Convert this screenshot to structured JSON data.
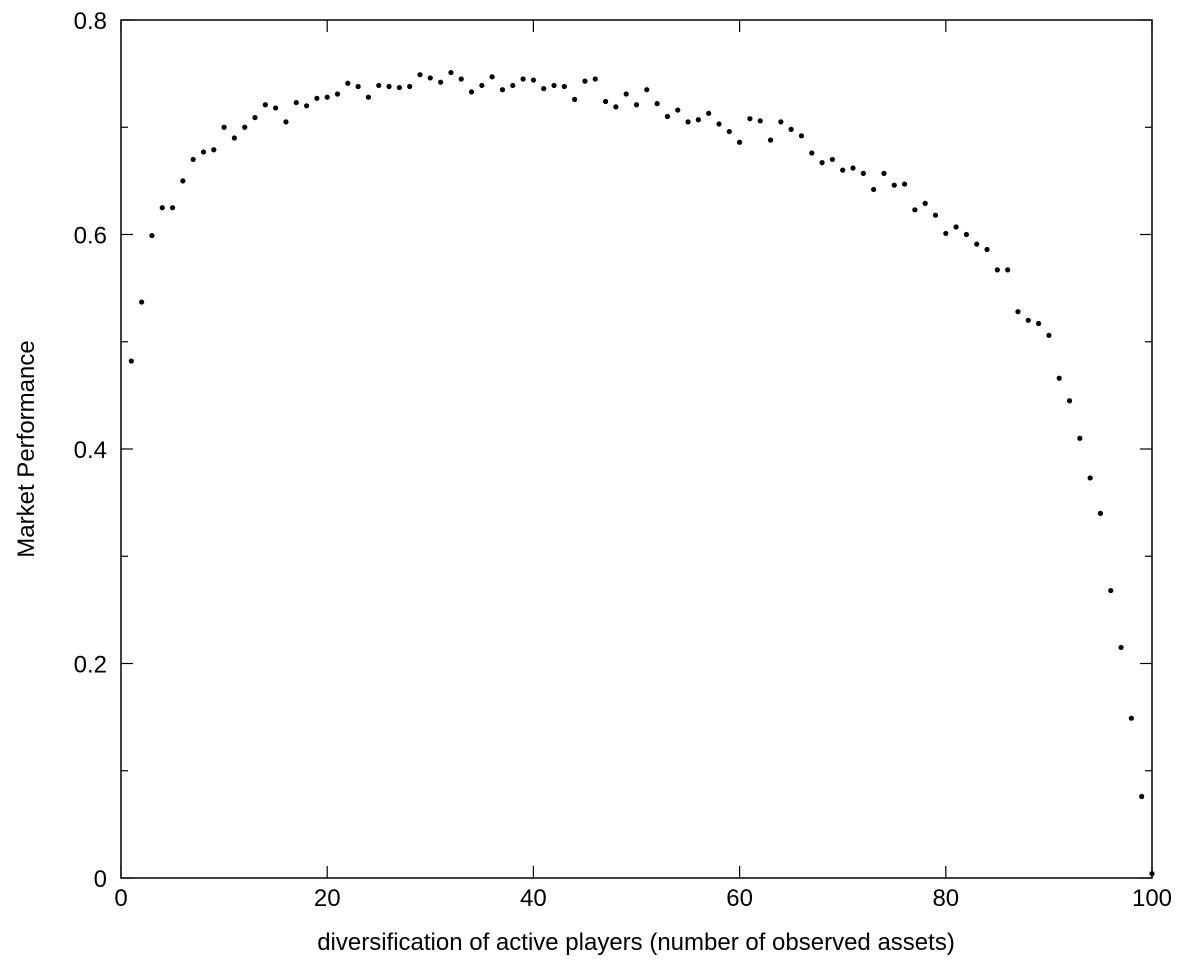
{
  "chart_data": {
    "type": "scatter",
    "title": "",
    "xlabel": "diversification of active players (number of observed assets)",
    "ylabel": "Market Performance",
    "xlim": [
      0,
      100
    ],
    "ylim": [
      0,
      0.8
    ],
    "x_ticks": [
      0,
      20,
      40,
      60,
      80,
      100
    ],
    "x_tick_labels": [
      "0",
      "20",
      "40",
      "60",
      "80",
      "100"
    ],
    "y_ticks": [
      0,
      0.2,
      0.4,
      0.6,
      0.8
    ],
    "y_tick_labels": [
      "0",
      "0.2",
      "0.4",
      "0.6",
      "0.8"
    ],
    "y_minor_ticks": [
      0.1,
      0.3,
      0.5,
      0.7
    ],
    "grid": false,
    "marker_color": "#000000",
    "series": [
      {
        "x": [
          1,
          2,
          3,
          4,
          5,
          6,
          7,
          8,
          9,
          10,
          11,
          12,
          13,
          14,
          15,
          16,
          17,
          18,
          19,
          20,
          21,
          22,
          23,
          24,
          25,
          26,
          27,
          28,
          29,
          30,
          31,
          32,
          33,
          34,
          35,
          36,
          37,
          38,
          39,
          40,
          41,
          42,
          43,
          44,
          45,
          46,
          47,
          48,
          49,
          50,
          51,
          52,
          53,
          54,
          55,
          56,
          57,
          58,
          59,
          60,
          61,
          62,
          63,
          64,
          65,
          66,
          67,
          68,
          69,
          70,
          71,
          72,
          73,
          74,
          75,
          76,
          77,
          78,
          79,
          80,
          81,
          82,
          83,
          84,
          85,
          86,
          87,
          88,
          89,
          90,
          91,
          92,
          93,
          94,
          95,
          96,
          97,
          98,
          99,
          100
        ],
        "y": [
          0.482,
          0.537,
          0.599,
          0.625,
          0.625,
          0.65,
          0.67,
          0.677,
          0.679,
          0.7,
          0.69,
          0.7,
          0.709,
          0.721,
          0.718,
          0.705,
          0.723,
          0.72,
          0.727,
          0.728,
          0.731,
          0.741,
          0.738,
          0.728,
          0.739,
          0.738,
          0.737,
          0.738,
          0.749,
          0.746,
          0.742,
          0.751,
          0.745,
          0.733,
          0.739,
          0.747,
          0.735,
          0.739,
          0.745,
          0.744,
          0.736,
          0.739,
          0.738,
          0.726,
          0.743,
          0.745,
          0.724,
          0.719,
          0.731,
          0.721,
          0.735,
          0.722,
          0.71,
          0.716,
          0.705,
          0.707,
          0.713,
          0.703,
          0.696,
          0.686,
          0.708,
          0.706,
          0.688,
          0.705,
          0.698,
          0.692,
          0.676,
          0.667,
          0.67,
          0.66,
          0.662,
          0.657,
          0.642,
          0.657,
          0.646,
          0.647,
          0.623,
          0.629,
          0.618,
          0.601,
          0.607,
          0.6,
          0.591,
          0.586,
          0.567,
          0.567,
          0.528,
          0.52,
          0.517,
          0.506,
          0.466,
          0.445,
          0.41,
          0.373,
          0.34,
          0.268,
          0.215,
          0.149,
          0.076,
          0.004
        ]
      }
    ]
  }
}
